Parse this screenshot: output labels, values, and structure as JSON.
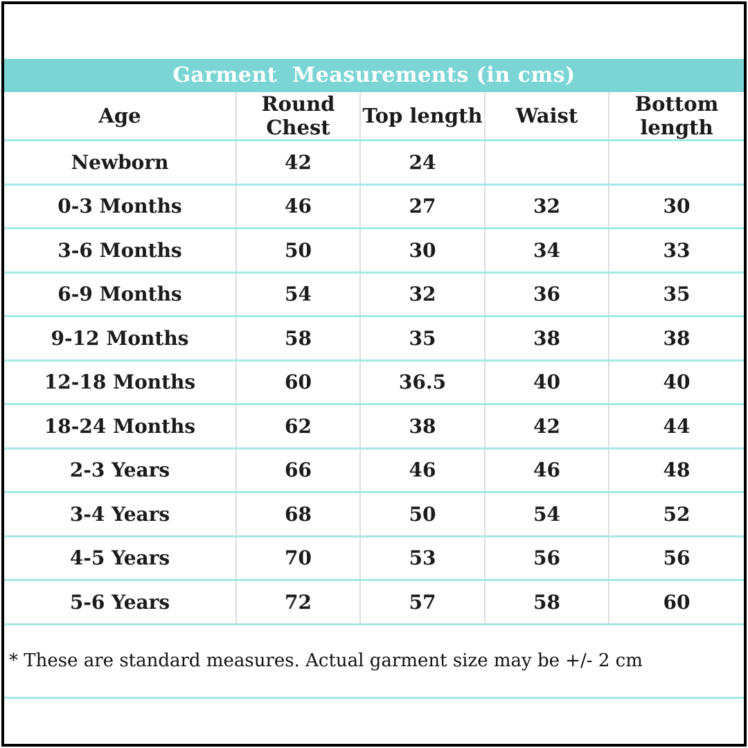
{
  "header": {
    "title": "Garment  Measurements (in cms)"
  },
  "table": {
    "columns": [
      "Age",
      "Round Chest",
      "Top length",
      "Waist",
      "Bottom length"
    ],
    "column_keys": [
      "age",
      "round_chest",
      "top_length",
      "waist",
      "bottom_length"
    ],
    "rows": [
      {
        "age": "Newborn",
        "round_chest": "42",
        "top_length": "24",
        "waist": "",
        "bottom_length": ""
      },
      {
        "age": "0-3 Months",
        "round_chest": "46",
        "top_length": "27",
        "waist": "32",
        "bottom_length": "30"
      },
      {
        "age": "3-6 Months",
        "round_chest": "50",
        "top_length": "30",
        "waist": "34",
        "bottom_length": "33"
      },
      {
        "age": "6-9 Months",
        "round_chest": "54",
        "top_length": "32",
        "waist": "36",
        "bottom_length": "35"
      },
      {
        "age": "9-12 Months",
        "round_chest": "58",
        "top_length": "35",
        "waist": "38",
        "bottom_length": "38"
      },
      {
        "age": "12-18 Months",
        "round_chest": "60",
        "top_length": "36.5",
        "waist": "40",
        "bottom_length": "40"
      },
      {
        "age": "18-24 Months",
        "round_chest": "62",
        "top_length": "38",
        "waist": "42",
        "bottom_length": "44"
      },
      {
        "age": "2-3 Years",
        "round_chest": "66",
        "top_length": "46",
        "waist": "46",
        "bottom_length": "48"
      },
      {
        "age": "3-4 Years",
        "round_chest": "68",
        "top_length": "50",
        "waist": "54",
        "bottom_length": "52"
      },
      {
        "age": "4-5 Years",
        "round_chest": "70",
        "top_length": "53",
        "waist": "56",
        "bottom_length": "56"
      },
      {
        "age": "5-6 Years",
        "round_chest": "72",
        "top_length": "57",
        "waist": "58",
        "bottom_length": "60"
      }
    ]
  },
  "footnote": "* These are standard measures. Actual garment size may be +/- 2 cm",
  "colors": {
    "title_bg": "#7cd5d5",
    "title_text": "#ffffff",
    "row_line": "#a5e8e8",
    "column_line": "#dedede",
    "text": "#1b1b1b",
    "border": "#000000"
  }
}
